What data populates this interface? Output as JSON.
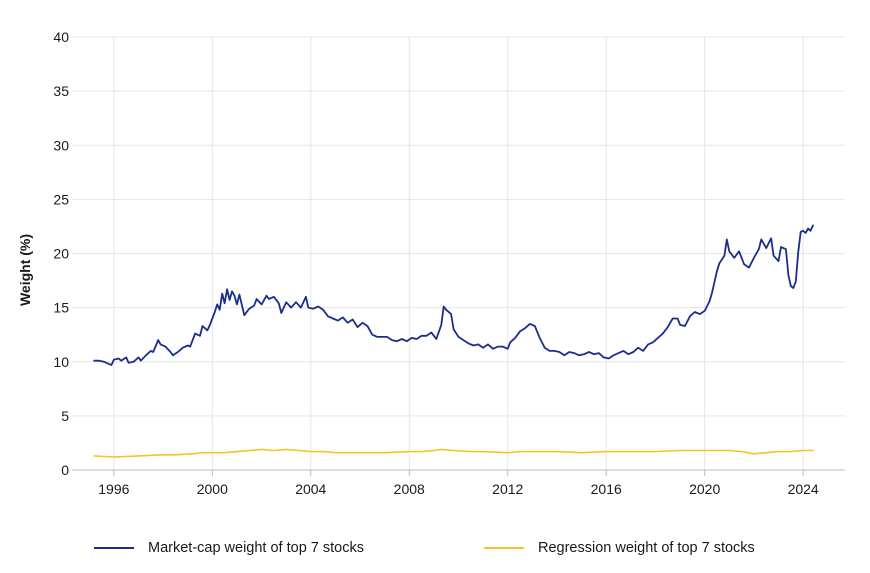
{
  "chart_data": {
    "type": "line",
    "title": "",
    "xlabel": "",
    "ylabel": "Weight (%)",
    "xlim": [
      1994.3,
      2025.7
    ],
    "ylim": [
      0,
      40
    ],
    "x_ticks": [
      1996,
      2000,
      2004,
      2008,
      2012,
      2016,
      2020,
      2024
    ],
    "y_ticks": [
      0,
      5,
      10,
      15,
      20,
      25,
      30,
      35,
      40
    ],
    "grid": true,
    "legend_position": "bottom",
    "series": [
      {
        "name": "Market-cap weight of top 7 stocks",
        "color": "#1b2f8a",
        "points": [
          [
            1995.2,
            10.1
          ],
          [
            1995.4,
            10.1
          ],
          [
            1995.6,
            10.0
          ],
          [
            1995.8,
            9.8
          ],
          [
            1995.9,
            9.7
          ],
          [
            1996.0,
            10.2
          ],
          [
            1996.2,
            10.3
          ],
          [
            1996.3,
            10.1
          ],
          [
            1996.5,
            10.4
          ],
          [
            1996.6,
            9.9
          ],
          [
            1996.8,
            10.0
          ],
          [
            1997.0,
            10.4
          ],
          [
            1997.1,
            10.1
          ],
          [
            1997.3,
            10.6
          ],
          [
            1997.5,
            11.0
          ],
          [
            1997.6,
            10.9
          ],
          [
            1997.8,
            12.0
          ],
          [
            1997.9,
            11.6
          ],
          [
            1998.1,
            11.4
          ],
          [
            1998.3,
            10.9
          ],
          [
            1998.4,
            10.6
          ],
          [
            1998.6,
            10.9
          ],
          [
            1998.8,
            11.3
          ],
          [
            1999.0,
            11.5
          ],
          [
            1999.1,
            11.4
          ],
          [
            1999.3,
            12.6
          ],
          [
            1999.5,
            12.4
          ],
          [
            1999.6,
            13.3
          ],
          [
            1999.8,
            12.9
          ],
          [
            1999.9,
            13.4
          ],
          [
            2000.1,
            14.6
          ],
          [
            2000.2,
            15.3
          ],
          [
            2000.3,
            14.8
          ],
          [
            2000.4,
            16.3
          ],
          [
            2000.5,
            15.4
          ],
          [
            2000.6,
            16.7
          ],
          [
            2000.7,
            15.7
          ],
          [
            2000.8,
            16.5
          ],
          [
            2000.9,
            16.1
          ],
          [
            2001.0,
            15.3
          ],
          [
            2001.1,
            16.2
          ],
          [
            2001.3,
            14.3
          ],
          [
            2001.5,
            14.9
          ],
          [
            2001.7,
            15.2
          ],
          [
            2001.8,
            15.8
          ],
          [
            2002.0,
            15.3
          ],
          [
            2002.2,
            16.1
          ],
          [
            2002.3,
            15.8
          ],
          [
            2002.5,
            16.0
          ],
          [
            2002.7,
            15.4
          ],
          [
            2002.8,
            14.5
          ],
          [
            2003.0,
            15.5
          ],
          [
            2003.2,
            15.0
          ],
          [
            2003.4,
            15.5
          ],
          [
            2003.6,
            15.0
          ],
          [
            2003.8,
            16.0
          ],
          [
            2003.9,
            15.0
          ],
          [
            2004.1,
            14.9
          ],
          [
            2004.3,
            15.1
          ],
          [
            2004.5,
            14.8
          ],
          [
            2004.7,
            14.2
          ],
          [
            2004.9,
            14.0
          ],
          [
            2005.1,
            13.8
          ],
          [
            2005.3,
            14.1
          ],
          [
            2005.5,
            13.6
          ],
          [
            2005.7,
            13.9
          ],
          [
            2005.9,
            13.2
          ],
          [
            2006.1,
            13.6
          ],
          [
            2006.3,
            13.3
          ],
          [
            2006.5,
            12.5
          ],
          [
            2006.7,
            12.3
          ],
          [
            2006.9,
            12.3
          ],
          [
            2007.1,
            12.3
          ],
          [
            2007.3,
            12.0
          ],
          [
            2007.5,
            11.9
          ],
          [
            2007.7,
            12.1
          ],
          [
            2007.9,
            11.9
          ],
          [
            2008.1,
            12.2
          ],
          [
            2008.3,
            12.1
          ],
          [
            2008.5,
            12.4
          ],
          [
            2008.7,
            12.4
          ],
          [
            2008.9,
            12.7
          ],
          [
            2009.0,
            12.4
          ],
          [
            2009.1,
            12.1
          ],
          [
            2009.3,
            13.4
          ],
          [
            2009.4,
            15.1
          ],
          [
            2009.5,
            14.8
          ],
          [
            2009.7,
            14.4
          ],
          [
            2009.8,
            13.0
          ],
          [
            2010.0,
            12.3
          ],
          [
            2010.2,
            12.0
          ],
          [
            2010.4,
            11.7
          ],
          [
            2010.6,
            11.5
          ],
          [
            2010.8,
            11.6
          ],
          [
            2011.0,
            11.3
          ],
          [
            2011.2,
            11.6
          ],
          [
            2011.4,
            11.2
          ],
          [
            2011.6,
            11.4
          ],
          [
            2011.8,
            11.4
          ],
          [
            2012.0,
            11.2
          ],
          [
            2012.1,
            11.8
          ],
          [
            2012.3,
            12.2
          ],
          [
            2012.5,
            12.8
          ],
          [
            2012.7,
            13.1
          ],
          [
            2012.9,
            13.5
          ],
          [
            2013.1,
            13.3
          ],
          [
            2013.3,
            12.2
          ],
          [
            2013.5,
            11.3
          ],
          [
            2013.7,
            11.0
          ],
          [
            2013.9,
            11.0
          ],
          [
            2014.1,
            10.9
          ],
          [
            2014.3,
            10.6
          ],
          [
            2014.5,
            10.9
          ],
          [
            2014.7,
            10.8
          ],
          [
            2014.9,
            10.6
          ],
          [
            2015.1,
            10.7
          ],
          [
            2015.3,
            10.9
          ],
          [
            2015.5,
            10.7
          ],
          [
            2015.7,
            10.8
          ],
          [
            2015.9,
            10.4
          ],
          [
            2016.1,
            10.3
          ],
          [
            2016.3,
            10.6
          ],
          [
            2016.5,
            10.8
          ],
          [
            2016.7,
            11.0
          ],
          [
            2016.9,
            10.7
          ],
          [
            2017.1,
            10.9
          ],
          [
            2017.3,
            11.3
          ],
          [
            2017.5,
            11.0
          ],
          [
            2017.7,
            11.6
          ],
          [
            2017.9,
            11.8
          ],
          [
            2018.1,
            12.2
          ],
          [
            2018.3,
            12.6
          ],
          [
            2018.5,
            13.2
          ],
          [
            2018.7,
            14.0
          ],
          [
            2018.9,
            14.0
          ],
          [
            2019.0,
            13.4
          ],
          [
            2019.2,
            13.3
          ],
          [
            2019.4,
            14.2
          ],
          [
            2019.6,
            14.6
          ],
          [
            2019.8,
            14.4
          ],
          [
            2020.0,
            14.7
          ],
          [
            2020.2,
            15.6
          ],
          [
            2020.3,
            16.4
          ],
          [
            2020.5,
            18.4
          ],
          [
            2020.6,
            19.1
          ],
          [
            2020.8,
            19.8
          ],
          [
            2020.9,
            21.3
          ],
          [
            2021.0,
            20.2
          ],
          [
            2021.2,
            19.6
          ],
          [
            2021.4,
            20.2
          ],
          [
            2021.6,
            19.0
          ],
          [
            2021.8,
            18.7
          ],
          [
            2022.0,
            19.6
          ],
          [
            2022.2,
            20.4
          ],
          [
            2022.3,
            21.3
          ],
          [
            2022.5,
            20.5
          ],
          [
            2022.7,
            21.4
          ],
          [
            2022.8,
            19.8
          ],
          [
            2023.0,
            19.3
          ],
          [
            2023.1,
            20.6
          ],
          [
            2023.3,
            20.4
          ],
          [
            2023.4,
            18.0
          ],
          [
            2023.5,
            17.0
          ],
          [
            2023.6,
            16.8
          ],
          [
            2023.7,
            17.4
          ],
          [
            2023.8,
            20.1
          ],
          [
            2023.9,
            22.0
          ],
          [
            2024.0,
            22.1
          ],
          [
            2024.1,
            21.9
          ],
          [
            2024.2,
            22.3
          ],
          [
            2024.3,
            22.1
          ],
          [
            2024.4,
            22.6
          ]
        ]
      },
      {
        "name": "Regression weight of top 7 stocks",
        "color": "#f2c623",
        "points": [
          [
            1995.2,
            1.3
          ],
          [
            1996.0,
            1.2
          ],
          [
            1997.0,
            1.3
          ],
          [
            1998.0,
            1.4
          ],
          [
            1998.5,
            1.4
          ],
          [
            1999.2,
            1.5
          ],
          [
            1999.6,
            1.6
          ],
          [
            2000.0,
            1.6
          ],
          [
            2000.5,
            1.6
          ],
          [
            2001.0,
            1.7
          ],
          [
            2001.5,
            1.8
          ],
          [
            2002.0,
            1.9
          ],
          [
            2002.5,
            1.8
          ],
          [
            2003.0,
            1.9
          ],
          [
            2003.5,
            1.8
          ],
          [
            2004.0,
            1.7
          ],
          [
            2004.5,
            1.7
          ],
          [
            2005.0,
            1.6
          ],
          [
            2006.0,
            1.6
          ],
          [
            2007.0,
            1.6
          ],
          [
            2008.0,
            1.7
          ],
          [
            2008.5,
            1.7
          ],
          [
            2009.0,
            1.8
          ],
          [
            2009.3,
            1.9
          ],
          [
            2009.8,
            1.8
          ],
          [
            2010.5,
            1.7
          ],
          [
            2011.0,
            1.7
          ],
          [
            2012.0,
            1.6
          ],
          [
            2012.5,
            1.7
          ],
          [
            2013.0,
            1.7
          ],
          [
            2014.0,
            1.7
          ],
          [
            2015.0,
            1.6
          ],
          [
            2016.0,
            1.7
          ],
          [
            2017.0,
            1.7
          ],
          [
            2018.0,
            1.7
          ],
          [
            2019.0,
            1.8
          ],
          [
            2020.0,
            1.8
          ],
          [
            2020.5,
            1.8
          ],
          [
            2021.0,
            1.8
          ],
          [
            2021.5,
            1.7
          ],
          [
            2022.0,
            1.5
          ],
          [
            2022.5,
            1.6
          ],
          [
            2023.0,
            1.7
          ],
          [
            2023.5,
            1.7
          ],
          [
            2024.0,
            1.8
          ],
          [
            2024.4,
            1.8
          ]
        ]
      }
    ]
  }
}
